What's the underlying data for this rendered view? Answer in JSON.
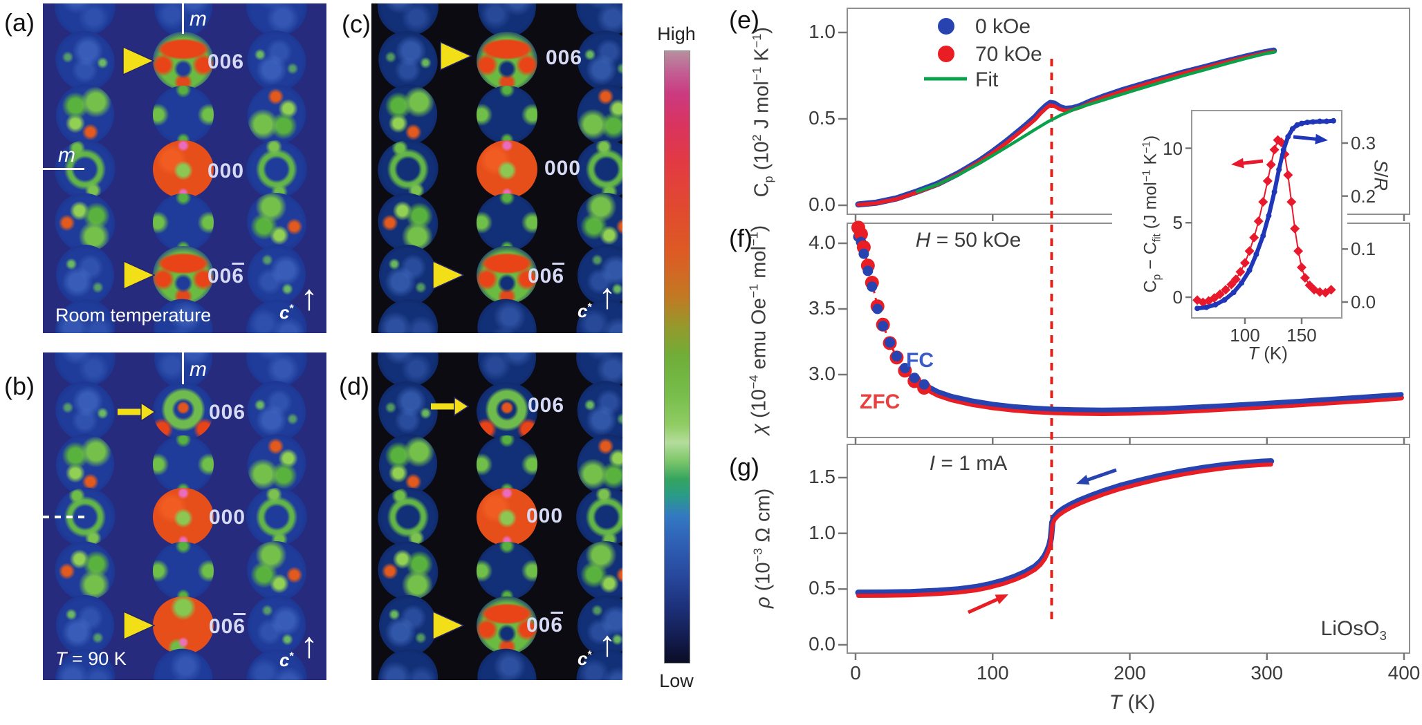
{
  "panels": {
    "a": {
      "letter": "(a)",
      "mirror_top": "m",
      "mirror_left": "m",
      "refl_top": "006",
      "refl_center": "000",
      "refl_bottom_pre": "00",
      "refl_bottom_bar": "6",
      "note": "Room temperature",
      "c_axis_parts": [
        {
          "t": "c",
          "i": true
        },
        {
          "t": "*",
          "s": "sup"
        }
      ]
    },
    "b": {
      "letter": "(b)",
      "mirror_top": "m",
      "refl_top": "006",
      "refl_center": "000",
      "refl_bottom_pre": "00",
      "refl_bottom_bar": "6",
      "note_parts": [
        {
          "t": "T",
          "i": true
        },
        {
          "t": " = 90 K"
        }
      ],
      "c_axis_parts": [
        {
          "t": "c",
          "i": true
        },
        {
          "t": "*",
          "s": "sup"
        }
      ]
    },
    "c": {
      "letter": "(c)",
      "refl_top": "006",
      "refl_center": "000",
      "refl_bottom_pre": "00",
      "refl_bottom_bar": "6",
      "c_axis_parts": [
        {
          "t": "c",
          "i": true
        },
        {
          "t": "*",
          "s": "sup"
        }
      ]
    },
    "d": {
      "letter": "(d)",
      "refl_top": "006",
      "refl_center": "000",
      "refl_bottom_pre": "00",
      "refl_bottom_bar": "6",
      "c_axis_parts": [
        {
          "t": "c",
          "i": true
        },
        {
          "t": "*",
          "s": "sup"
        }
      ]
    },
    "e": {
      "letter": "(e)"
    },
    "f": {
      "letter": "(f)"
    },
    "g": {
      "letter": "(g)"
    }
  },
  "colorbar": {
    "high": "High",
    "low": "Low"
  },
  "chart_data": {
    "type": "line",
    "sample_parts": [
      {
        "t": "LiOsO"
      },
      {
        "t": "3",
        "s": "sub"
      }
    ],
    "transition_T": 143,
    "x_axis": {
      "label_parts": [
        {
          "t": "T",
          "i": true
        },
        {
          "t": " (K)"
        }
      ],
      "ticks": [
        {
          "t": "0",
          "v": 0
        },
        {
          "t": "100",
          "v": 100
        },
        {
          "t": "200",
          "v": 200
        },
        {
          "t": "300",
          "v": 300
        },
        {
          "t": "400",
          "v": 400
        }
      ],
      "range": [
        0,
        400
      ]
    },
    "panel_e": {
      "ylabel_parts": [
        {
          "t": "C"
        },
        {
          "t": "p",
          "s": "sub"
        },
        {
          "t": " (10"
        },
        {
          "t": "2",
          "s": "sup"
        },
        {
          "t": " J mol"
        },
        {
          "t": "−1",
          "s": "sup"
        },
        {
          "t": " K"
        },
        {
          "t": "−1",
          "s": "sup"
        },
        {
          "t": ")"
        }
      ],
      "yticks": [
        {
          "t": "0.0",
          "v": 0
        },
        {
          "t": "0.5",
          "v": 0.5
        },
        {
          "t": "1.0",
          "v": 1
        }
      ],
      "ylim": [
        0,
        1.14
      ],
      "legend": [
        {
          "label": "0 kOe",
          "color": "#2743b0",
          "marker": "circle"
        },
        {
          "label": "70 kOe",
          "color": "#e81e24",
          "marker": "circle"
        },
        {
          "label": "Fit",
          "color": "#0aa14b",
          "marker": "line"
        }
      ],
      "series": [
        {
          "name": "0 kOe",
          "color": "#2743b0",
          "x": [
            2,
            15,
            30,
            45,
            60,
            75,
            90,
            100,
            110,
            120,
            126,
            131,
            135,
            139,
            142,
            145,
            149,
            153,
            158,
            164,
            172,
            182,
            195,
            210,
            225,
            240,
            255,
            270,
            285,
            298,
            305
          ],
          "y": [
            0.005,
            0.015,
            0.04,
            0.08,
            0.125,
            0.185,
            0.255,
            0.31,
            0.37,
            0.435,
            0.475,
            0.51,
            0.545,
            0.575,
            0.592,
            0.588,
            0.568,
            0.558,
            0.561,
            0.575,
            0.603,
            0.632,
            0.667,
            0.702,
            0.737,
            0.77,
            0.8,
            0.832,
            0.861,
            0.885,
            0.895
          ]
        },
        {
          "name": "70 kOe",
          "color": "#e81e24",
          "x": [
            2,
            15,
            30,
            45,
            60,
            75,
            90,
            100,
            110,
            120,
            126,
            131,
            135,
            139,
            142,
            145,
            149,
            153,
            158,
            164,
            172,
            182,
            195,
            210,
            225,
            240,
            255,
            270,
            285,
            298,
            305
          ],
          "y": [
            0.003,
            0.012,
            0.036,
            0.075,
            0.12,
            0.18,
            0.249,
            0.303,
            0.361,
            0.424,
            0.463,
            0.497,
            0.532,
            0.562,
            0.579,
            0.574,
            0.556,
            0.547,
            0.552,
            0.567,
            0.596,
            0.626,
            0.661,
            0.697,
            0.732,
            0.766,
            0.796,
            0.828,
            0.857,
            0.881,
            0.891
          ]
        },
        {
          "name": "Fit",
          "color": "#0aa14b",
          "x": [
            45,
            60,
            75,
            90,
            100,
            110,
            120,
            130,
            140,
            150,
            160,
            170,
            182,
            195,
            210,
            225,
            240,
            255,
            270,
            285,
            298,
            306
          ],
          "y": [
            0.079,
            0.121,
            0.176,
            0.241,
            0.288,
            0.336,
            0.385,
            0.434,
            0.482,
            0.523,
            0.557,
            0.583,
            0.612,
            0.645,
            0.681,
            0.717,
            0.752,
            0.785,
            0.818,
            0.85,
            0.876,
            0.888
          ]
        }
      ]
    },
    "inset": {
      "left_ylabel_parts": [
        {
          "t": "C"
        },
        {
          "t": "p",
          "s": "sub"
        },
        {
          "t": " − "
        },
        {
          "t": "C"
        },
        {
          "t": "fit",
          "s": "sub"
        },
        {
          "t": " (J mol"
        },
        {
          "t": "−1",
          "s": "sup"
        },
        {
          "t": " K"
        },
        {
          "t": "−1",
          "s": "sup"
        },
        {
          "t": ")"
        }
      ],
      "right_ylabel_parts": [
        {
          "t": "S",
          "i": true
        },
        {
          "t": "/"
        },
        {
          "t": "R",
          "i": true
        }
      ],
      "xlabel_parts": [
        {
          "t": "T",
          "i": true
        },
        {
          "t": " (K)"
        }
      ],
      "xticks": [
        {
          "t": "100",
          "v": 100
        },
        {
          "t": "150",
          "v": 150
        }
      ],
      "left_yticks": [
        {
          "t": "0",
          "v": 0
        },
        {
          "t": "5",
          "v": 5
        },
        {
          "t": "10",
          "v": 10
        }
      ],
      "right_yticks": [
        {
          "t": "0.0",
          "v": 0
        },
        {
          "t": "0.1",
          "v": 0.1
        },
        {
          "t": "0.2",
          "v": 0.2
        },
        {
          "t": "0.3",
          "v": 0.3
        }
      ],
      "series": [
        {
          "name": "Cp − Cfit",
          "color": "#e8192c",
          "axis": "left",
          "marker": "diamond",
          "x": [
            58,
            63,
            68,
            73,
            78,
            83,
            88,
            92,
            96,
            100,
            104,
            108,
            112,
            116,
            120,
            123,
            126,
            129,
            132,
            135,
            138,
            141,
            144,
            147,
            150,
            153,
            157,
            161,
            166,
            171,
            176
          ],
          "y": [
            -0.2,
            -0.35,
            -0.25,
            -0.05,
            0.2,
            0.5,
            0.85,
            1.2,
            1.7,
            2.3,
            3.1,
            4.0,
            5.1,
            6.4,
            7.8,
            8.9,
            9.9,
            10.55,
            10.4,
            9.6,
            8.2,
            6.4,
            4.6,
            3.1,
            2.0,
            1.3,
            0.8,
            0.5,
            0.35,
            0.3,
            0.5
          ]
        },
        {
          "name": "S/R",
          "color": "#2036b8",
          "axis": "right",
          "marker": "dot",
          "x": [
            58,
            66,
            74,
            82,
            90,
            97,
            104,
            110,
            116,
            121,
            126,
            130,
            134,
            138,
            142,
            146,
            150,
            155,
            160,
            166,
            172,
            178
          ],
          "y": [
            -0.012,
            -0.01,
            -0.005,
            0.004,
            0.018,
            0.036,
            0.06,
            0.09,
            0.125,
            0.163,
            0.208,
            0.25,
            0.287,
            0.312,
            0.327,
            0.334,
            0.337,
            0.339,
            0.34,
            0.341,
            0.341,
            0.342
          ]
        }
      ]
    },
    "panel_f": {
      "annotation_parts": [
        {
          "t": "H",
          "i": true
        },
        {
          "t": " = 50 kOe"
        }
      ],
      "ylabel_parts": [
        {
          "t": "χ",
          "i": true
        },
        {
          "t": " (10"
        },
        {
          "t": "−4",
          "s": "sup"
        },
        {
          "t": " emu Oe"
        },
        {
          "t": "−1",
          "s": "sup"
        },
        {
          "t": " mol"
        },
        {
          "t": "−1",
          "s": "sup"
        },
        {
          "t": ")"
        }
      ],
      "yticks": [
        {
          "t": "3.0",
          "v": 3
        },
        {
          "t": "3.5",
          "v": 3.5
        },
        {
          "t": "4.0",
          "v": 4
        }
      ],
      "fc_label": "FC",
      "zfc_label": "ZFC",
      "series": [
        {
          "name": "ZFC",
          "color": "#e81e24",
          "x": [
            2,
            4,
            6,
            9,
            12,
            16,
            20,
            25,
            30,
            36,
            43,
            50,
            60,
            70,
            85,
            100,
            115,
            130,
            145,
            160,
            180,
            200,
            225,
            250,
            275,
            300,
            325,
            350,
            375,
            398
          ],
          "y": [
            4.12,
            4.07,
            3.97,
            3.83,
            3.7,
            3.52,
            3.38,
            3.24,
            3.13,
            3.03,
            2.95,
            2.9,
            2.845,
            2.81,
            2.775,
            2.75,
            2.732,
            2.72,
            2.712,
            2.708,
            2.705,
            2.708,
            2.716,
            2.728,
            2.742,
            2.757,
            2.773,
            2.79,
            2.807,
            2.824
          ]
        },
        {
          "name": "FC",
          "color": "#2743b0",
          "x": [
            2,
            4,
            6,
            9,
            12,
            16,
            20,
            25,
            30,
            36,
            43,
            50,
            60,
            70,
            85,
            100,
            115,
            130,
            145,
            160,
            180,
            200,
            225,
            250,
            275,
            300,
            325,
            350,
            375,
            398
          ],
          "y": [
            4.05,
            4.01,
            3.92,
            3.79,
            3.67,
            3.5,
            3.37,
            3.245,
            3.14,
            3.05,
            2.975,
            2.925,
            2.87,
            2.835,
            2.8,
            2.775,
            2.757,
            2.745,
            2.737,
            2.733,
            2.73,
            2.733,
            2.741,
            2.753,
            2.767,
            2.782,
            2.798,
            2.815,
            2.832,
            2.849
          ]
        }
      ]
    },
    "panel_g": {
      "annotation_parts": [
        {
          "t": "I",
          "i": true
        },
        {
          "t": " = 1 mA"
        }
      ],
      "ylabel_parts": [
        {
          "t": "ρ",
          "i": true
        },
        {
          "t": " (10"
        },
        {
          "t": "−3",
          "s": "sup"
        },
        {
          "t": " Ω cm)"
        }
      ],
      "yticks": [
        {
          "t": "0.0",
          "v": 0
        },
        {
          "t": "0.5",
          "v": 0.5
        },
        {
          "t": "1.0",
          "v": 1
        },
        {
          "t": "1.5",
          "v": 1.5
        }
      ],
      "series": [
        {
          "name": "cooling",
          "color": "#2743b0",
          "x": [
            2,
            20,
            40,
            60,
            75,
            88,
            98,
            108,
            116,
            124,
            131,
            135,
            138,
            140,
            141.5,
            142.5,
            143.5,
            145,
            148,
            152,
            157,
            163,
            171,
            181,
            193,
            207,
            222,
            238,
            254,
            270,
            285,
            296,
            303
          ],
          "y": [
            0.468,
            0.469,
            0.473,
            0.484,
            0.498,
            0.518,
            0.543,
            0.576,
            0.61,
            0.653,
            0.703,
            0.748,
            0.798,
            0.848,
            0.898,
            0.958,
            1.098,
            1.148,
            1.188,
            1.223,
            1.258,
            1.293,
            1.333,
            1.378,
            1.426,
            1.471,
            1.515,
            1.555,
            1.588,
            1.614,
            1.632,
            1.642,
            1.646
          ]
        },
        {
          "name": "warming",
          "color": "#e81e24",
          "x": [
            2,
            20,
            40,
            60,
            75,
            88,
            98,
            108,
            116,
            124,
            131,
            135,
            138,
            140,
            141.5,
            142.5,
            143.5,
            145,
            148,
            152,
            157,
            163,
            171,
            181,
            193,
            207,
            222,
            238,
            254,
            270,
            285,
            296,
            303
          ],
          "y": [
            0.44,
            0.441,
            0.445,
            0.456,
            0.47,
            0.49,
            0.515,
            0.548,
            0.582,
            0.625,
            0.675,
            0.72,
            0.77,
            0.82,
            0.87,
            0.93,
            1.07,
            1.12,
            1.16,
            1.195,
            1.23,
            1.265,
            1.305,
            1.35,
            1.398,
            1.443,
            1.487,
            1.527,
            1.56,
            1.586,
            1.604,
            1.614,
            1.618
          ]
        }
      ]
    }
  }
}
